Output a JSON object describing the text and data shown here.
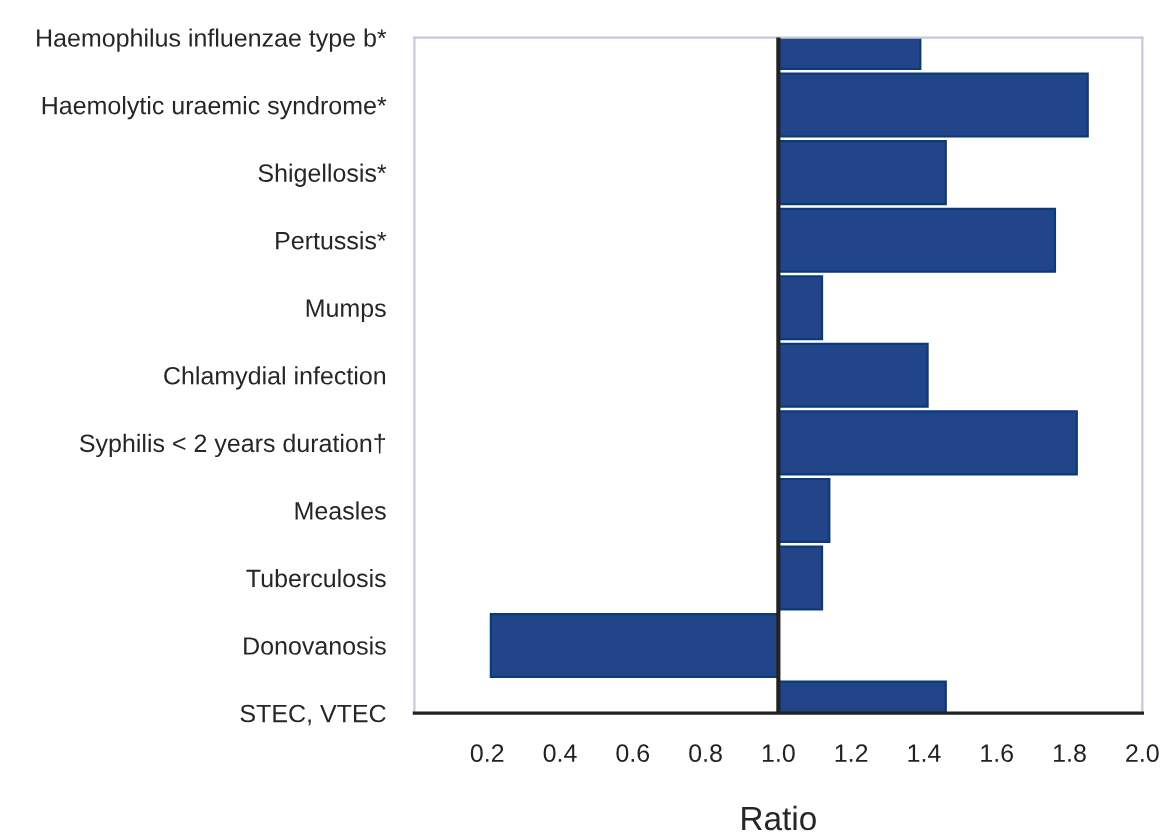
{
  "chart_data": {
    "type": "bar",
    "orientation": "horizontal",
    "xlabel": "Ratio",
    "categories": [
      "Haemophilus influenzae type b*",
      "Haemolytic uraemic syndrome*",
      "Shigellosis*",
      "Pertussis*",
      "Mumps",
      "Chlamydial infection",
      "Syphilis < 2 years duration†",
      "Measles",
      "Tuberculosis",
      "Donovanosis",
      "STEC, VTEC"
    ],
    "base": [
      1,
      1,
      1,
      1,
      1,
      1,
      1,
      1,
      1,
      1,
      1
    ],
    "values": [
      0.39,
      0.85,
      0.46,
      0.76,
      0.12,
      0.41,
      0.82,
      0.14,
      0.12,
      -0.79,
      0.46
    ],
    "color": "#224488",
    "xlim": [
      0,
      2
    ],
    "xticks": [
      {
        "value": 0,
        "label": null
      },
      {
        "value": 0.2,
        "label": "0.2"
      },
      {
        "value": 0.4,
        "label": "0.4"
      },
      {
        "value": 0.6,
        "label": "0.6"
      },
      {
        "value": 0.8,
        "label": "0.8"
      },
      {
        "value": 1.0,
        "label": "1.0"
      },
      {
        "value": 1.2,
        "label": "1.2"
      },
      {
        "value": 1.4,
        "label": "1.4"
      },
      {
        "value": 1.6,
        "label": "1.6"
      },
      {
        "value": 1.8,
        "label": "1.8"
      },
      {
        "value": 2.0,
        "label": "2.0"
      }
    ],
    "ref_lines": [
      {
        "axis": "x",
        "value": 1.0,
        "color": "#222222"
      }
    ],
    "grid": false,
    "legend": false
  }
}
